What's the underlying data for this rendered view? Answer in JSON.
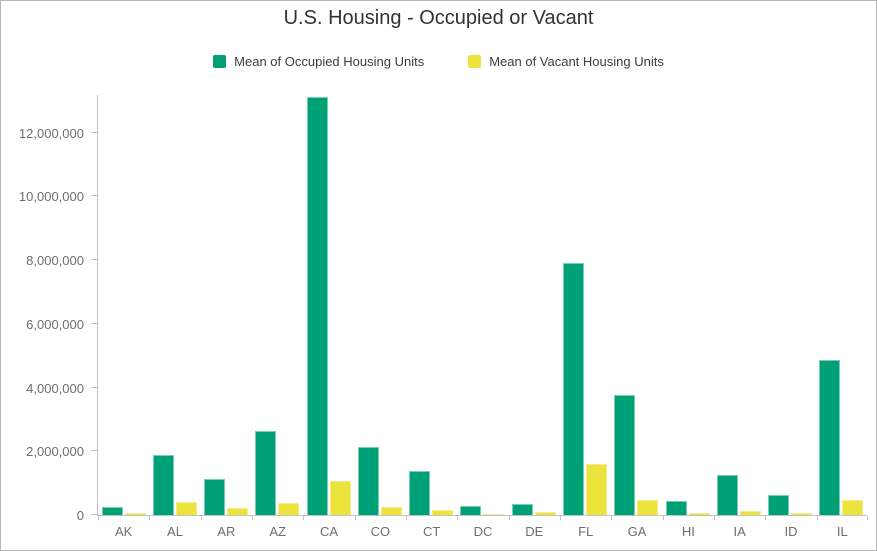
{
  "title": "U.S. Housing - Occupied or Vacant",
  "legend": {
    "items": [
      {
        "label": "Mean of Occupied Housing Units",
        "color": "#00a077",
        "edge": "#7bcdb2"
      },
      {
        "label": "Mean of Vacant Housing Units",
        "color": "#ece33d",
        "edge": "#f2ec8f"
      }
    ]
  },
  "colors": {
    "occupied_green": "#00a077",
    "vacant_yellow": "#ece33d",
    "axis_line": "#c2c2c2",
    "axis_text": "#6e6e6e",
    "title_text": "#323232",
    "border": "#b5b5b5",
    "background": "#ffffff"
  },
  "chart_data": {
    "type": "bar",
    "title": "U.S. Housing - Occupied or Vacant",
    "xlabel": "",
    "ylabel": "",
    "grid": false,
    "legend_position": "top",
    "categories": [
      "AK",
      "AL",
      "AR",
      "AZ",
      "CA",
      "CO",
      "CT",
      "DC",
      "DE",
      "FL",
      "GA",
      "HI",
      "IA",
      "ID",
      "IL"
    ],
    "series": [
      {
        "name": "Mean of Occupied Housing Units",
        "color": "#00a077",
        "values": [
          260000,
          1880000,
          1140000,
          2620000,
          13120000,
          2130000,
          1390000,
          275000,
          355000,
          7900000,
          3780000,
          445000,
          1265000,
          625000,
          4870000
        ]
      },
      {
        "name": "Mean of Vacant Housing Units",
        "color": "#ece33d",
        "values": [
          65000,
          400000,
          215000,
          390000,
          1080000,
          240000,
          145000,
          35000,
          80000,
          1590000,
          480000,
          75000,
          130000,
          75000,
          470000
        ]
      }
    ],
    "ylim": [
      0,
      13200000
    ],
    "yticks": [
      {
        "value": 0,
        "label": "0"
      },
      {
        "value": 2000000,
        "label": "2,000,000"
      },
      {
        "value": 4000000,
        "label": "4,000,000"
      },
      {
        "value": 6000000,
        "label": "6,000,000"
      },
      {
        "value": 8000000,
        "label": "8,000,000"
      },
      {
        "value": 10000000,
        "label": "10,000,000"
      },
      {
        "value": 12000000,
        "label": "12,000,000"
      }
    ]
  }
}
